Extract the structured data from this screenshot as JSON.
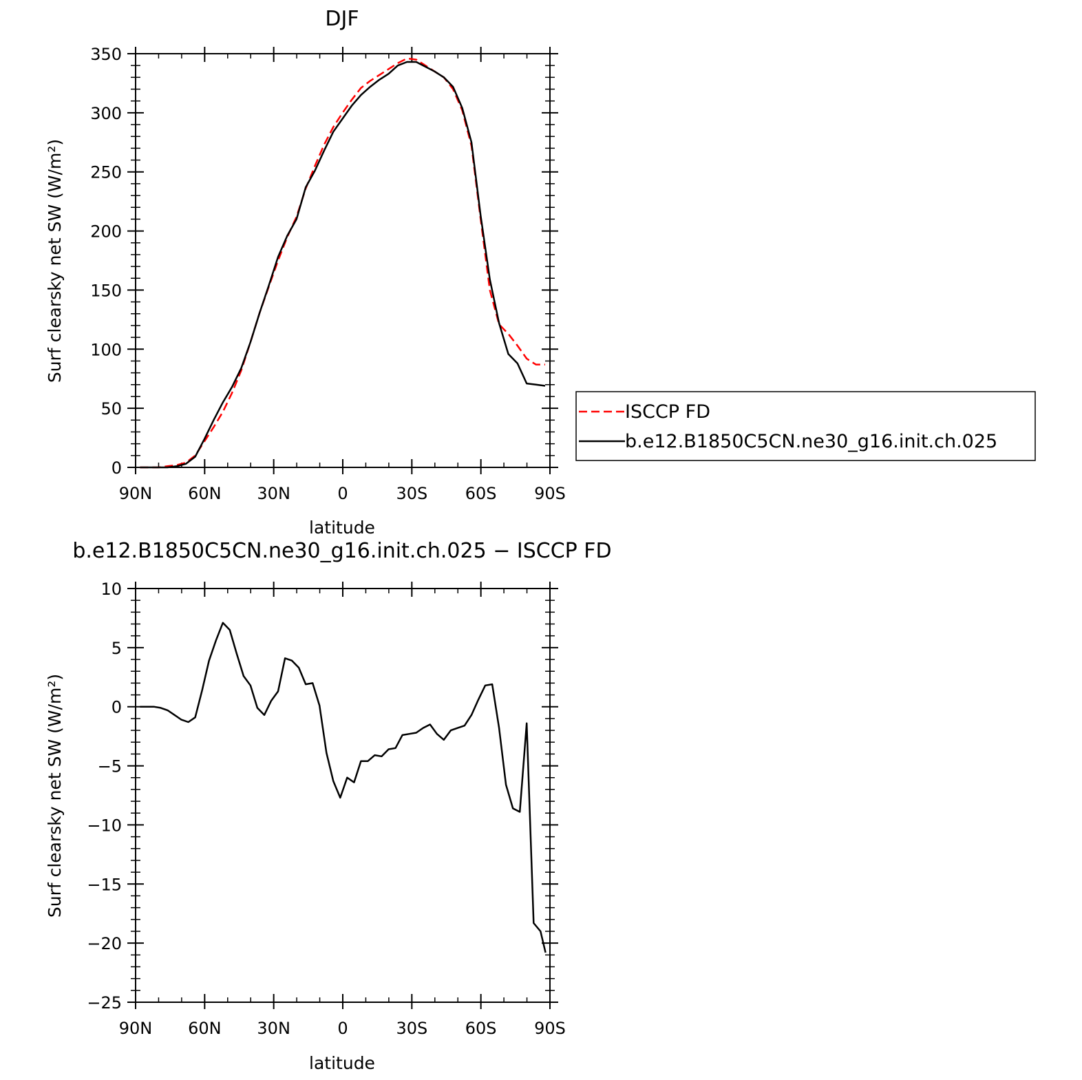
{
  "chart_data": [
    {
      "type": "line",
      "title": "DJF",
      "xlabel": "latitude",
      "ylabel": "Surf clearsky net SW (W/m²)",
      "xlim": [
        90,
        -90
      ],
      "ylim": [
        0,
        350
      ],
      "x_ticks": [
        {
          "value": 90,
          "label": "90N"
        },
        {
          "value": 60,
          "label": "60N"
        },
        {
          "value": 30,
          "label": "30N"
        },
        {
          "value": 0,
          "label": "0"
        },
        {
          "value": -30,
          "label": "30S"
        },
        {
          "value": -60,
          "label": "60S"
        },
        {
          "value": -90,
          "label": "90S"
        }
      ],
      "y_ticks": [
        0,
        50,
        100,
        150,
        200,
        250,
        300,
        350
      ],
      "grid": false,
      "legend": "right",
      "series": [
        {
          "name": "ISCCP FD",
          "color": "#ff0000",
          "dash": true,
          "x": [
            88.1,
            84.1,
            80.1,
            76.1,
            72.1,
            68.1,
            64.1,
            60.1,
            56.1,
            52.1,
            48.1,
            44.1,
            40.1,
            36.1,
            32.1,
            28.1,
            24.1,
            20.1,
            16.1,
            12.1,
            8.1,
            4.1,
            0.1,
            -3.9,
            -7.9,
            -11.9,
            -15.9,
            -19.9,
            -23.9,
            -27.9,
            -31.9,
            -35.9,
            -39.9,
            -43.9,
            -47.9,
            -51.9,
            -55.9,
            -59.9,
            -63.9,
            -67.9,
            -71.9,
            -75.9,
            -79.9,
            -83.9,
            -87.9
          ],
          "values": [
            0,
            0,
            0,
            1,
            2,
            4,
            10,
            22,
            34,
            47,
            63,
            82,
            106,
            131,
            153,
            175,
            195,
            212,
            236,
            255,
            273,
            288,
            300,
            311,
            321,
            327,
            332,
            337,
            342,
            346,
            345,
            340,
            335,
            330,
            320,
            302,
            272,
            210,
            150,
            121,
            113,
            103,
            92,
            87,
            87
          ]
        },
        {
          "name": "b.e12.B1850C5CN.ne30_g16.init.ch.025",
          "color": "#000000",
          "dash": false,
          "x": [
            88.1,
            84.1,
            80.1,
            76.1,
            72.1,
            68.1,
            64.1,
            60.1,
            56.1,
            52.1,
            48.1,
            44.1,
            40.1,
            36.1,
            32.1,
            28.1,
            24.1,
            20.1,
            16.1,
            12.1,
            8.1,
            4.1,
            0.1,
            -3.9,
            -7.9,
            -11.9,
            -15.9,
            -19.9,
            -23.9,
            -27.9,
            -31.9,
            -35.9,
            -39.9,
            -43.9,
            -47.9,
            -51.9,
            -55.9,
            -59.9,
            -63.9,
            -67.9,
            -71.9,
            -75.9,
            -79.9,
            -83.9,
            -87.9
          ],
          "values": [
            0,
            0,
            0,
            0,
            1,
            3,
            9,
            24,
            40,
            55,
            68,
            84,
            106,
            131,
            154,
            178,
            196,
            210,
            237,
            251,
            268,
            284,
            295,
            306,
            315,
            322,
            328,
            333,
            340,
            343,
            343,
            339,
            335,
            330,
            322,
            304,
            275,
            213,
            159,
            122,
            96,
            88,
            71,
            70,
            69
          ]
        }
      ]
    },
    {
      "type": "line",
      "title": "b.e12.B1850C5CN.ne30_g16.init.ch.025 − ISCCP FD",
      "xlabel": "latitude",
      "ylabel": "Surf clearsky net SW (W/m²)",
      "xlim": [
        90,
        -90
      ],
      "ylim": [
        -25,
        10
      ],
      "x_ticks": [
        {
          "value": 90,
          "label": "90N"
        },
        {
          "value": 60,
          "label": "60N"
        },
        {
          "value": 30,
          "label": "30N"
        },
        {
          "value": 0,
          "label": "0"
        },
        {
          "value": -30,
          "label": "30S"
        },
        {
          "value": -60,
          "label": "60S"
        },
        {
          "value": -90,
          "label": "90S"
        }
      ],
      "y_ticks": [
        -25,
        -20,
        -15,
        -10,
        -5,
        0,
        5,
        10
      ],
      "grid": false,
      "series": [
        {
          "color": "#000000",
          "dash": false,
          "x": [
            88.1,
            85.1,
            82.1,
            79.1,
            76.1,
            73.1,
            70.1,
            67.1,
            64.1,
            61.1,
            58.1,
            55.1,
            52.1,
            49.1,
            46.1,
            43.1,
            40.1,
            37.1,
            34.1,
            31.1,
            28.1,
            25.1,
            22.1,
            19.1,
            16.1,
            13.1,
            10.1,
            7.1,
            4.1,
            1.1,
            -1.9,
            -4.9,
            -7.9,
            -10.9,
            -13.9,
            -16.9,
            -19.9,
            -22.9,
            -25.9,
            -28.9,
            -31.9,
            -34.9,
            -37.9,
            -40.9,
            -43.9,
            -46.9,
            -49.9,
            -52.9,
            -55.9,
            -58.9,
            -61.9,
            -64.9,
            -67.9,
            -70.9,
            -73.9,
            -76.9,
            -79.9,
            -82.9,
            -85.9,
            -88.1
          ],
          "values": [
            0.0,
            0.0,
            0.0,
            -0.1,
            -0.3,
            -0.7,
            -1.1,
            -1.3,
            -0.9,
            1.4,
            3.9,
            5.6,
            7.1,
            6.5,
            4.5,
            2.6,
            1.8,
            -0.1,
            -0.7,
            0.5,
            1.3,
            4.1,
            3.9,
            3.3,
            1.9,
            2.0,
            0.1,
            -3.9,
            -6.3,
            -7.7,
            -6.0,
            -6.4,
            -4.6,
            -4.6,
            -4.1,
            -4.2,
            -3.6,
            -3.5,
            -2.4,
            -2.3,
            -2.2,
            -1.8,
            -1.5,
            -2.3,
            -2.8,
            -2.0,
            -1.8,
            -1.6,
            -0.7,
            0.6,
            1.8,
            1.9,
            -1.8,
            -6.6,
            -8.6,
            -8.9,
            -1.4,
            -18.3,
            -19.0,
            -20.8
          ]
        }
      ]
    }
  ]
}
